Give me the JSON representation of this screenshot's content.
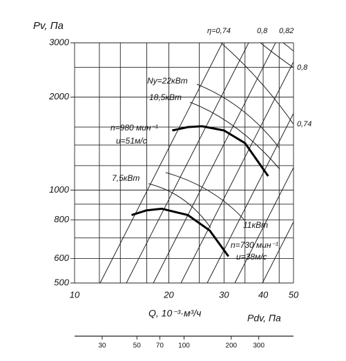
{
  "chart_data": {
    "type": "line",
    "xscale": "log",
    "yscale": "log",
    "y_label": "Pv, Па",
    "x_label": "Q, 10⁻³·м³/ч",
    "x2_label": "Pdv, Па",
    "xlim": [
      10,
      50
    ],
    "xticks": [
      10,
      20,
      30,
      40,
      50
    ],
    "xgrid": [
      12,
      14,
      17,
      25,
      35,
      45
    ],
    "ylim": [
      500,
      3000
    ],
    "yticks": [
      500,
      600,
      800,
      1000,
      2000,
      3000
    ],
    "ygrid": [
      700,
      900,
      1200,
      1400,
      1600,
      2500
    ],
    "x2lim": [
      20,
      500
    ],
    "x2ticks": [
      30,
      50,
      70,
      100,
      200,
      300
    ],
    "series": [
      {
        "color": "#000000",
        "x": [
          20.5,
          23,
          25.5,
          30,
          35,
          41.5
        ],
        "values": [
          1560,
          1600,
          1610,
          1560,
          1420,
          1110
        ]
      },
      {
        "color": "#000000",
        "x": [
          15.2,
          17,
          19,
          23,
          27,
          31
        ],
        "values": [
          830,
          860,
          870,
          830,
          740,
          610
        ]
      }
    ],
    "annotations": [
      "η=0,74",
      "0,8",
      "0,82",
      "0,8",
      "0,74",
      "Ny=22кВт",
      "18,5кВт",
      "n=980 мин⁻¹",
      "u=51м/с",
      "7,5кВт",
      "11кВт",
      "n=730 мин⁻¹",
      "u=38м/с"
    ]
  }
}
